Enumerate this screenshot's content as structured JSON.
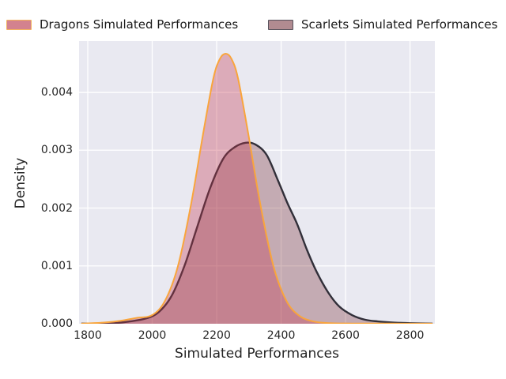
{
  "chart_data": {
    "type": "area",
    "subtype": "kde-density",
    "title": "",
    "xlabel": "Simulated Performances",
    "ylabel": "Density",
    "x_ticks": [
      1800,
      2000,
      2200,
      2400,
      2600,
      2800
    ],
    "y_ticks": [
      {
        "value": 0.0,
        "label": "0.000"
      },
      {
        "value": 0.001,
        "label": "0.001"
      },
      {
        "value": 0.002,
        "label": "0.002"
      },
      {
        "value": 0.003,
        "label": "0.003"
      },
      {
        "value": 0.004,
        "label": "0.004"
      }
    ],
    "xlim": [
      1773,
      2877
    ],
    "ylim": [
      0,
      0.004888
    ],
    "grid": true,
    "legend_position": "top",
    "plot_background": "#e9e9f1",
    "gridline_color": "#ffffff",
    "text_color": "#262626",
    "series": [
      {
        "name": "Scarlets Simulated Performances",
        "line_color": "#312f39",
        "line_width": 2.4,
        "fill_color": "rgba(128,56,64,0.35)",
        "legend_fill": "#b18b91",
        "legend_border": "#55525c",
        "peak": {
          "x": 2290,
          "density": 0.00313
        },
        "points": [
          [
            1780,
            2e-06
          ],
          [
            1880,
            1e-05
          ],
          [
            1930,
            4e-05
          ],
          [
            1980,
            9e-05
          ],
          [
            2020,
            0.0002
          ],
          [
            2060,
            0.00048
          ],
          [
            2100,
            0.001
          ],
          [
            2140,
            0.00168
          ],
          [
            2180,
            0.00235
          ],
          [
            2220,
            0.00285
          ],
          [
            2255,
            0.00305
          ],
          [
            2290,
            0.00313
          ],
          [
            2320,
            0.0031
          ],
          [
            2355,
            0.00292
          ],
          [
            2390,
            0.00248
          ],
          [
            2420,
            0.00208
          ],
          [
            2450,
            0.00172
          ],
          [
            2480,
            0.00128
          ],
          [
            2510,
            0.0009
          ],
          [
            2545,
            0.00055
          ],
          [
            2580,
            0.0003
          ],
          [
            2620,
            0.00015
          ],
          [
            2660,
            7e-05
          ],
          [
            2700,
            4e-05
          ],
          [
            2750,
            2e-05
          ],
          [
            2800,
            1e-05
          ],
          [
            2870,
            3e-06
          ]
        ]
      },
      {
        "name": "Dragons Simulated Performances",
        "line_color": "#f9a53c",
        "line_width": 2.0,
        "fill_color": "rgba(197,54,77,0.34)",
        "legend_fill": "#d3828e",
        "legend_border": "#f3b45c",
        "peak": {
          "x": 2228,
          "density": 0.00467
        },
        "points": [
          [
            1780,
            2e-06
          ],
          [
            1850,
            2e-05
          ],
          [
            1900,
            5e-05
          ],
          [
            1950,
            0.0001
          ],
          [
            2000,
            0.00015
          ],
          [
            2040,
            0.0004
          ],
          [
            2080,
            0.001
          ],
          [
            2120,
            0.00205
          ],
          [
            2160,
            0.00335
          ],
          [
            2190,
            0.00425
          ],
          [
            2210,
            0.00458
          ],
          [
            2228,
            0.00467
          ],
          [
            2246,
            0.00458
          ],
          [
            2266,
            0.00425
          ],
          [
            2296,
            0.00335
          ],
          [
            2336,
            0.00205
          ],
          [
            2376,
            0.001
          ],
          [
            2416,
            0.0004
          ],
          [
            2456,
            0.00014
          ],
          [
            2500,
            4e-05
          ],
          [
            2550,
            1e-05
          ],
          [
            2620,
            4e-06
          ],
          [
            2870,
            2e-06
          ]
        ]
      }
    ],
    "legend": {
      "dragons_label": "Dragons Simulated Performances",
      "scarlets_label": "Scarlets Simulated Performances"
    }
  }
}
